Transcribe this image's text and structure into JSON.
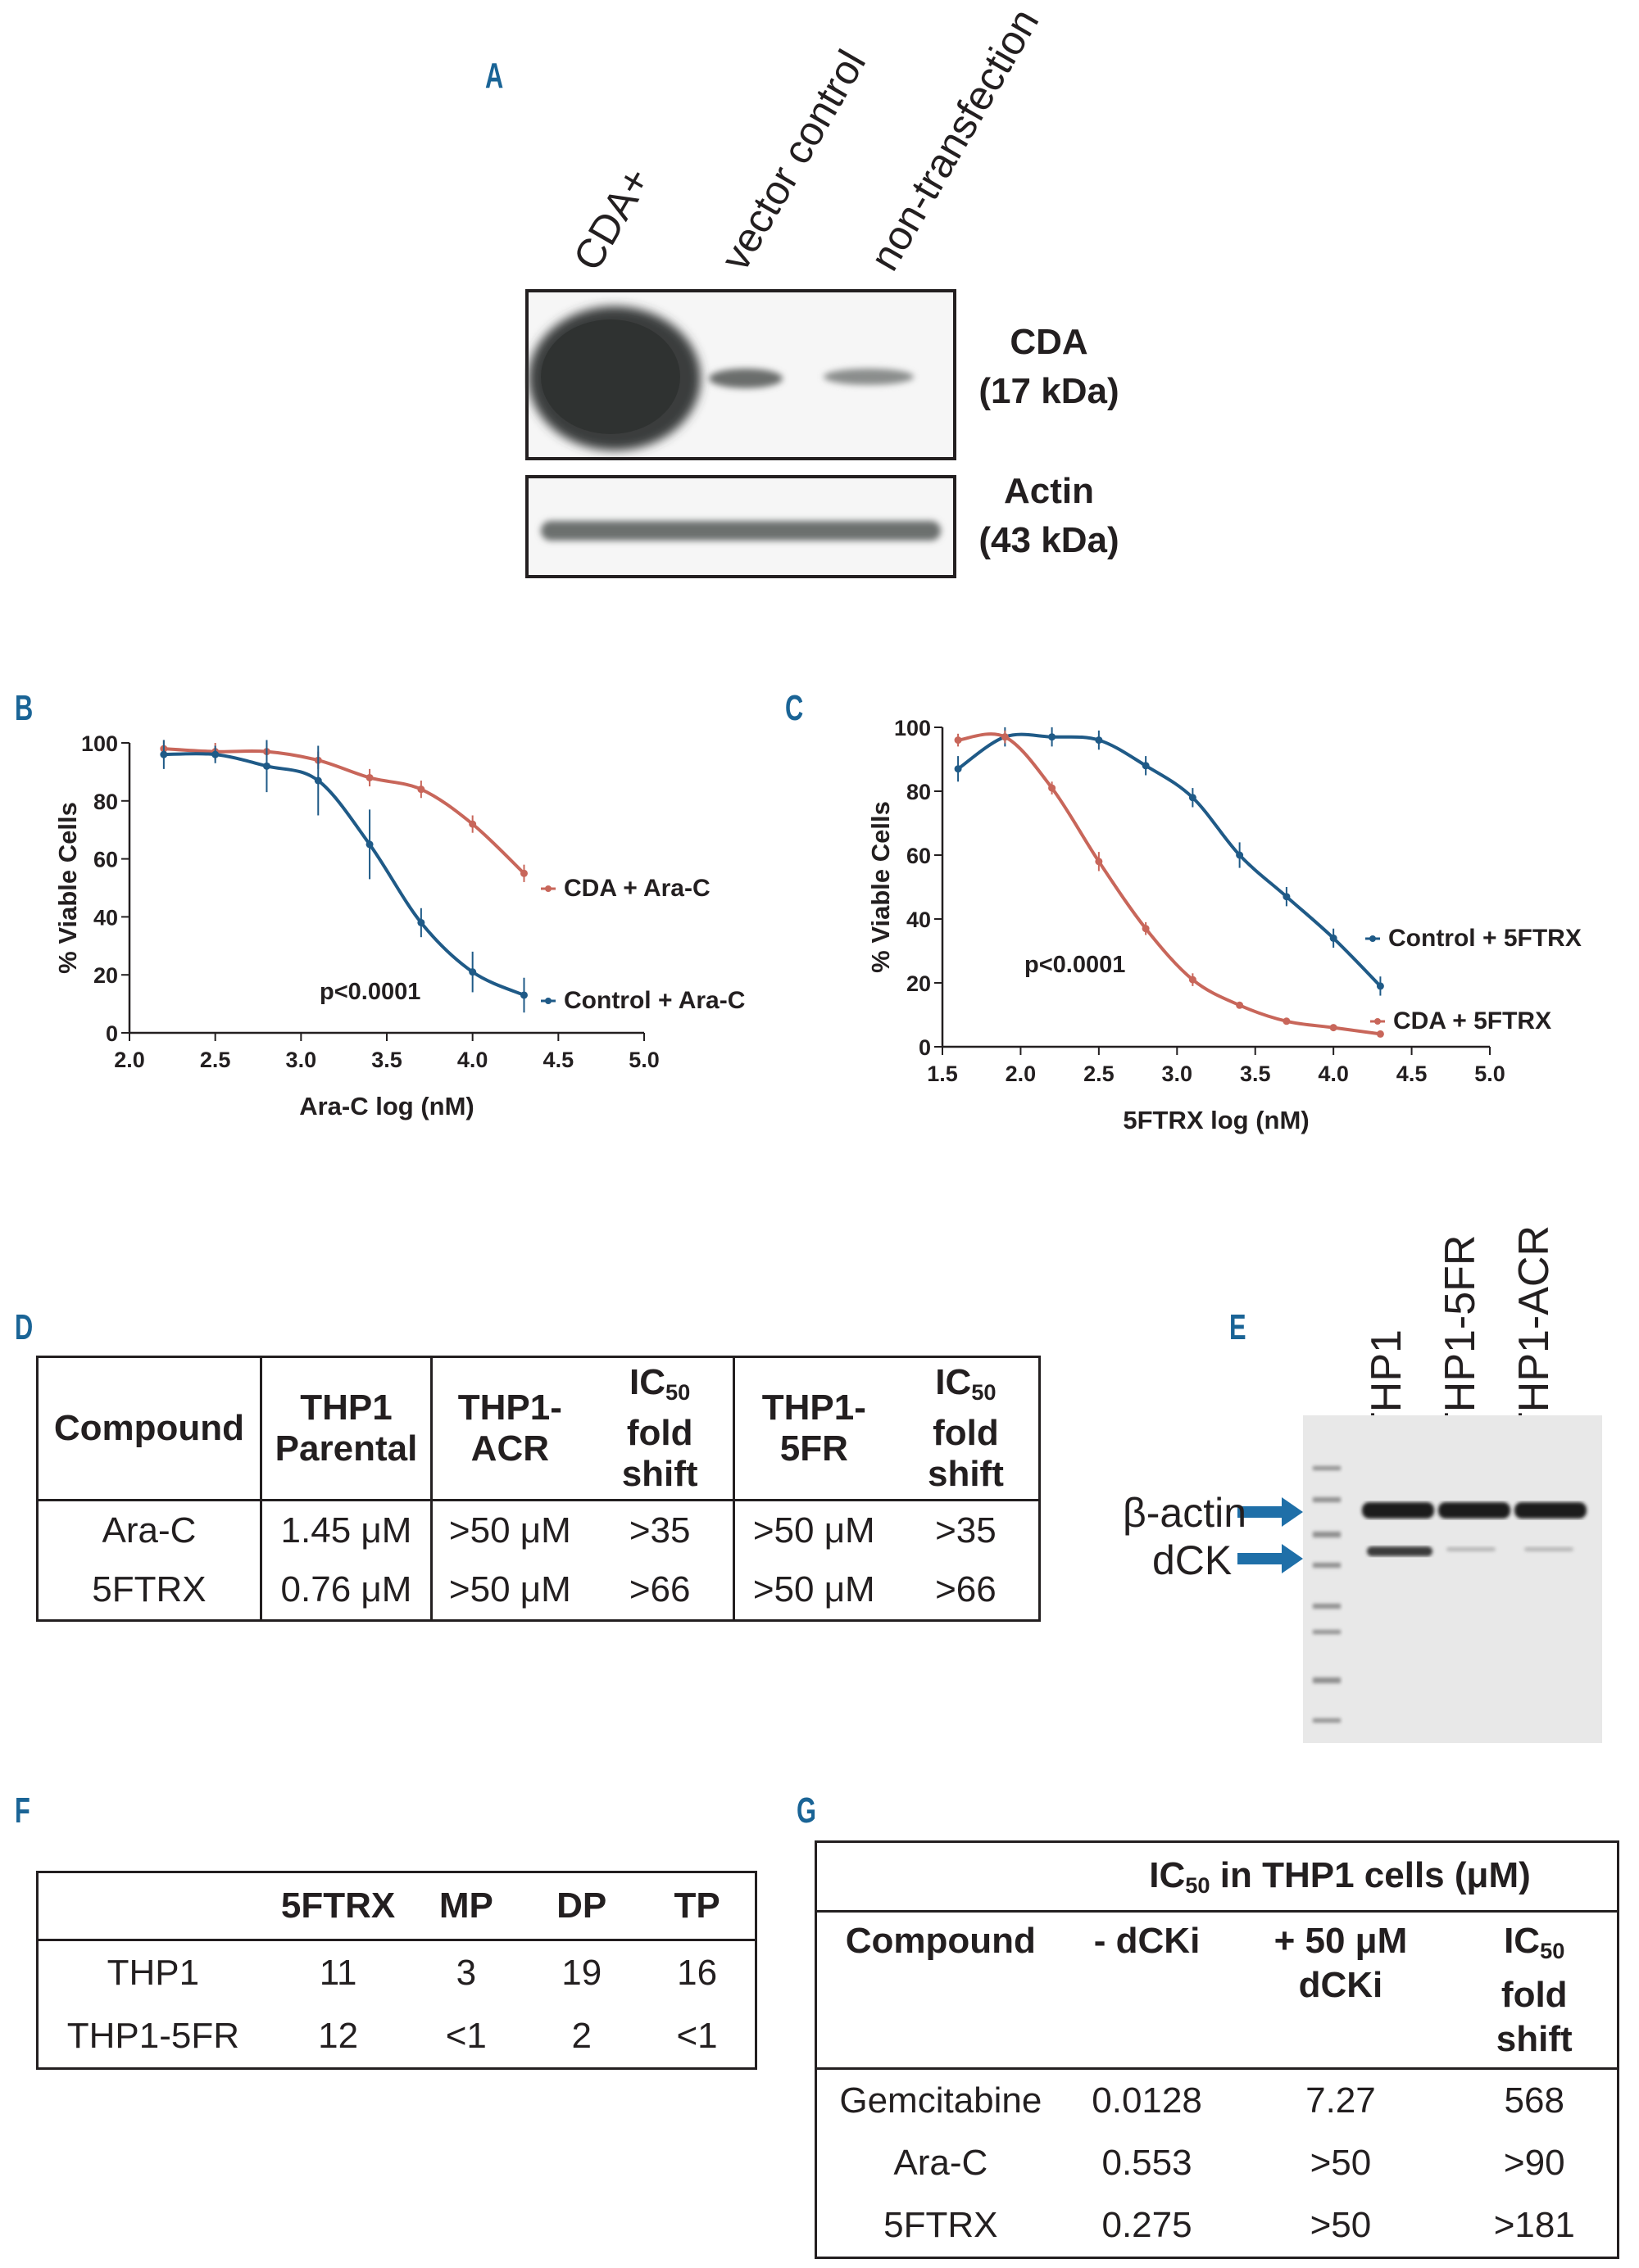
{
  "panel_labels": {
    "a": "A",
    "b": "B",
    "c": "C",
    "d": "D",
    "e": "E",
    "f": "F",
    "g": "G"
  },
  "panel_a": {
    "lanes": [
      "CDA+",
      "vector control",
      "non-transfection"
    ],
    "bands": [
      {
        "name_line1": "CDA",
        "name_line2": "(17 kDa)"
      },
      {
        "name_line1": "Actin",
        "name_line2": "(43 kDa)"
      }
    ]
  },
  "chart_data": [
    {
      "panel": "B",
      "type": "line",
      "xlabel": "Ara-C log (nM)",
      "ylabel": "% Viable Cells",
      "xlim": [
        2.0,
        5.0
      ],
      "ylim": [
        0,
        100
      ],
      "xticks": [
        "2.0",
        "2.5",
        "3.0",
        "3.5",
        "4.0",
        "4.5",
        "5.0"
      ],
      "yticks": [
        "0",
        "20",
        "40",
        "60",
        "80",
        "100"
      ],
      "annotation": "p<0.0001",
      "series": [
        {
          "name": "CDA + Ara-C",
          "color": "#c8665a",
          "x": [
            2.2,
            2.5,
            2.8,
            3.1,
            3.4,
            3.7,
            4.0,
            4.3
          ],
          "y": [
            98,
            97,
            97,
            94,
            88,
            84,
            72,
            55
          ],
          "err": [
            3,
            3,
            3,
            3,
            3,
            3,
            3,
            3
          ]
        },
        {
          "name": "Control + Ara-C",
          "color": "#1f5a87",
          "x": [
            2.2,
            2.5,
            2.8,
            3.1,
            3.4,
            3.7,
            4.0,
            4.3
          ],
          "y": [
            96,
            96,
            92,
            87,
            65,
            38,
            21,
            13
          ],
          "err": [
            5,
            3,
            9,
            12,
            12,
            5,
            7,
            6
          ]
        }
      ]
    },
    {
      "panel": "C",
      "type": "line",
      "xlabel": "5FTRX log (nM)",
      "ylabel": "% Viable Cells",
      "xlim": [
        1.5,
        5.0
      ],
      "ylim": [
        0,
        100
      ],
      "xticks": [
        "1.5",
        "2.0",
        "2.5",
        "3.0",
        "3.5",
        "4.0",
        "4.5",
        "5.0"
      ],
      "yticks": [
        "0",
        "20",
        "40",
        "60",
        "80",
        "100"
      ],
      "annotation": "p<0.0001",
      "series": [
        {
          "name": "Control + 5FTRX",
          "color": "#1f5a87",
          "x": [
            1.6,
            1.9,
            2.2,
            2.5,
            2.8,
            3.1,
            3.4,
            3.7,
            4.0,
            4.3
          ],
          "y": [
            87,
            97,
            97,
            96,
            88,
            78,
            60,
            47,
            34,
            19
          ],
          "err": [
            4,
            3,
            3,
            3,
            3,
            3,
            4,
            3,
            3,
            3
          ]
        },
        {
          "name": "CDA + 5FTRX",
          "color": "#c8665a",
          "x": [
            1.6,
            1.9,
            2.2,
            2.5,
            2.8,
            3.1,
            3.4,
            3.7,
            4.0,
            4.3
          ],
          "y": [
            96,
            97,
            81,
            58,
            37,
            21,
            13,
            8,
            6,
            4
          ],
          "err": [
            2,
            2,
            2,
            3,
            2,
            2,
            1,
            1,
            1,
            1
          ]
        }
      ]
    }
  ],
  "table_d": {
    "headers": [
      {
        "l1": "Compound",
        "l2": "",
        "l3": ""
      },
      {
        "l1": "THP1",
        "l2": "Parental",
        "l3": ""
      },
      {
        "l1": "THP1-",
        "l2": "ACR",
        "l3": ""
      },
      {
        "l1": "IC50",
        "l2": "fold",
        "l3": "shift"
      },
      {
        "l1": "THP1-",
        "l2": "5FR",
        "l3": ""
      },
      {
        "l1": "IC50",
        "l2": "fold",
        "l3": "shift"
      }
    ],
    "rows": [
      [
        "Ara-C",
        "1.45 μM",
        ">50 μM",
        ">35",
        ">50 μM",
        ">35"
      ],
      [
        "5FTRX",
        "0.76 μM",
        ">50 μM",
        ">66",
        ">50 μM",
        ">66"
      ]
    ]
  },
  "panel_e": {
    "lanes": [
      "THP1",
      "THP1-5FR",
      "THP1-ACR"
    ],
    "bands": [
      "β-actin",
      "dCK"
    ]
  },
  "table_f": {
    "headers": [
      "",
      "5FTRX",
      "MP",
      "DP",
      "TP"
    ],
    "rows": [
      [
        "THP1",
        "11",
        "3",
        "19",
        "16"
      ],
      [
        "THP1-5FR",
        "12",
        "<1",
        "2",
        "<1"
      ]
    ]
  },
  "table_g": {
    "title": "IC50 in THP1 cells (μM)",
    "headers": [
      {
        "l1": "Compound",
        "l2": "",
        "l3": ""
      },
      {
        "l1": "- dCKi",
        "l2": "",
        "l3": ""
      },
      {
        "l1": "+ 50 μM",
        "l2": "dCKi",
        "l3": ""
      },
      {
        "l1": "IC50",
        "l2": "fold",
        "l3": "shift"
      }
    ],
    "rows": [
      [
        "Gemcitabine",
        "0.0128",
        "7.27",
        "568"
      ],
      [
        "Ara-C",
        "0.553",
        ">50",
        ">90"
      ],
      [
        "5FTRX",
        "0.275",
        ">50",
        ">181"
      ]
    ]
  }
}
